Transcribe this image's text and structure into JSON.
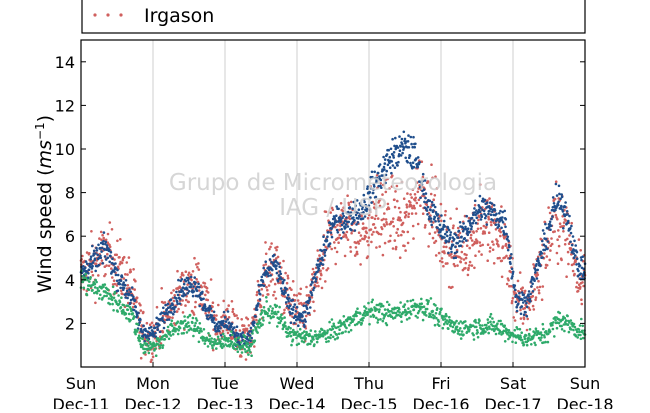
{
  "chart_data": {
    "type": "scatter",
    "title": "",
    "xlabel": "",
    "ylabel": "Wind speed (ms⁻¹)",
    "ylabel_parts": {
      "main": "Wind speed (",
      "unit": "ms",
      "exp": "−1",
      "close": ")"
    },
    "ylim": [
      0,
      15
    ],
    "yticks": [
      2,
      4,
      6,
      8,
      10,
      12,
      14
    ],
    "xlim": [
      0,
      7
    ],
    "xticks": [
      {
        "x": 0,
        "day": "Sun",
        "date": "Dec-11"
      },
      {
        "x": 1,
        "day": "Mon",
        "date": "Dec-12"
      },
      {
        "x": 2,
        "day": "Tue",
        "date": "Dec-13"
      },
      {
        "x": 3,
        "day": "Wed",
        "date": "Dec-14"
      },
      {
        "x": 4,
        "day": "Thu",
        "date": "Dec-15"
      },
      {
        "x": 5,
        "day": "Fri",
        "date": "Dec-16"
      },
      {
        "x": 6,
        "day": "Sat",
        "date": "Dec-17"
      },
      {
        "x": 7,
        "day": "Sun",
        "date": "Dec-18"
      }
    ],
    "vertical_grid": true,
    "legend": {
      "placement": "top",
      "visible_entries": [
        "Irgason"
      ]
    },
    "watermark": [
      "Grupo de Micrometeorologia",
      "IAG / USP"
    ],
    "series": [
      {
        "name": "Irgason",
        "color": "#d0605e",
        "profile": [
          [
            0,
            4.2
          ],
          [
            0.2,
            4.8
          ],
          [
            0.35,
            5.2
          ],
          [
            0.5,
            4.6
          ],
          [
            0.7,
            3.6
          ],
          [
            0.85,
            1.6
          ],
          [
            1.0,
            1.3
          ],
          [
            1.2,
            2.4
          ],
          [
            1.4,
            3.5
          ],
          [
            1.6,
            3.9
          ],
          [
            1.75,
            2.8
          ],
          [
            1.9,
            1.9
          ],
          [
            2.05,
            2.2
          ],
          [
            2.2,
            1.3
          ],
          [
            2.35,
            1.4
          ],
          [
            2.55,
            4.1
          ],
          [
            2.7,
            4.6
          ],
          [
            2.9,
            2.9
          ],
          [
            3.1,
            2.2
          ],
          [
            3.3,
            4.3
          ],
          [
            3.5,
            6.3
          ],
          [
            3.7,
            6.6
          ],
          [
            3.9,
            6.1
          ],
          [
            4.1,
            6.9
          ],
          [
            4.3,
            7.0
          ],
          [
            4.5,
            6.4
          ],
          [
            4.7,
            8.4
          ],
          [
            4.85,
            7.6
          ],
          [
            5.0,
            5.8
          ],
          [
            5.2,
            5.3
          ],
          [
            5.4,
            5.7
          ],
          [
            5.55,
            6.6
          ],
          [
            5.75,
            6.2
          ],
          [
            5.9,
            5.4
          ],
          [
            6.05,
            2.9
          ],
          [
            6.2,
            2.8
          ],
          [
            6.45,
            5.4
          ],
          [
            6.6,
            6.9
          ],
          [
            6.75,
            6.1
          ],
          [
            6.9,
            4.4
          ],
          [
            7.0,
            4.2
          ]
        ],
        "spread": 1.1,
        "n_points": 1400
      },
      {
        "name": "",
        "color": "#1f4e8c",
        "profile": [
          [
            0,
            4.3
          ],
          [
            0.2,
            4.9
          ],
          [
            0.35,
            5.5
          ],
          [
            0.5,
            4.2
          ],
          [
            0.7,
            3.2
          ],
          [
            0.85,
            1.6
          ],
          [
            1.0,
            1.5
          ],
          [
            1.2,
            2.6
          ],
          [
            1.4,
            3.6
          ],
          [
            1.6,
            3.8
          ],
          [
            1.75,
            2.6
          ],
          [
            1.9,
            1.8
          ],
          [
            2.05,
            2.1
          ],
          [
            2.2,
            1.2
          ],
          [
            2.35,
            1.3
          ],
          [
            2.55,
            4.3
          ],
          [
            2.7,
            4.7
          ],
          [
            2.9,
            2.7
          ],
          [
            3.1,
            2.2
          ],
          [
            3.3,
            4.6
          ],
          [
            3.5,
            6.6
          ],
          [
            3.7,
            6.8
          ],
          [
            3.9,
            7.2
          ],
          [
            4.1,
            8.5
          ],
          [
            4.3,
            9.6
          ],
          [
            4.5,
            10.1
          ],
          [
            4.65,
            9.6
          ],
          [
            4.8,
            7.6
          ],
          [
            5.0,
            6.3
          ],
          [
            5.2,
            5.6
          ],
          [
            5.4,
            6.6
          ],
          [
            5.55,
            7.3
          ],
          [
            5.75,
            7.0
          ],
          [
            5.9,
            6.6
          ],
          [
            6.05,
            3.0
          ],
          [
            6.2,
            3.0
          ],
          [
            6.45,
            5.8
          ],
          [
            6.6,
            7.6
          ],
          [
            6.75,
            7.1
          ],
          [
            6.9,
            4.6
          ],
          [
            7.0,
            4.4
          ]
        ],
        "spread": 0.45,
        "n_points": 1300
      },
      {
        "name": "",
        "color": "#2eaa6a",
        "profile": [
          [
            0,
            4.0
          ],
          [
            0.2,
            3.6
          ],
          [
            0.35,
            3.4
          ],
          [
            0.5,
            3.0
          ],
          [
            0.7,
            2.4
          ],
          [
            0.85,
            1.0
          ],
          [
            1.0,
            0.9
          ],
          [
            1.2,
            1.5
          ],
          [
            1.4,
            2.0
          ],
          [
            1.6,
            1.8
          ],
          [
            1.75,
            1.3
          ],
          [
            1.9,
            1.0
          ],
          [
            2.05,
            1.3
          ],
          [
            2.2,
            1.0
          ],
          [
            2.35,
            0.9
          ],
          [
            2.55,
            2.6
          ],
          [
            2.7,
            2.5
          ],
          [
            2.9,
            1.5
          ],
          [
            3.1,
            1.3
          ],
          [
            3.3,
            1.4
          ],
          [
            3.5,
            1.6
          ],
          [
            3.7,
            2.0
          ],
          [
            3.9,
            2.4
          ],
          [
            4.1,
            2.6
          ],
          [
            4.3,
            2.4
          ],
          [
            4.5,
            2.6
          ],
          [
            4.7,
            2.8
          ],
          [
            4.85,
            2.6
          ],
          [
            5.0,
            2.2
          ],
          [
            5.2,
            1.8
          ],
          [
            5.4,
            1.8
          ],
          [
            5.6,
            1.9
          ],
          [
            5.8,
            1.8
          ],
          [
            6.0,
            1.5
          ],
          [
            6.2,
            1.3
          ],
          [
            6.45,
            1.5
          ],
          [
            6.65,
            2.2
          ],
          [
            6.85,
            1.8
          ],
          [
            7.0,
            1.6
          ]
        ],
        "spread": 0.45,
        "n_points": 1100
      }
    ]
  }
}
